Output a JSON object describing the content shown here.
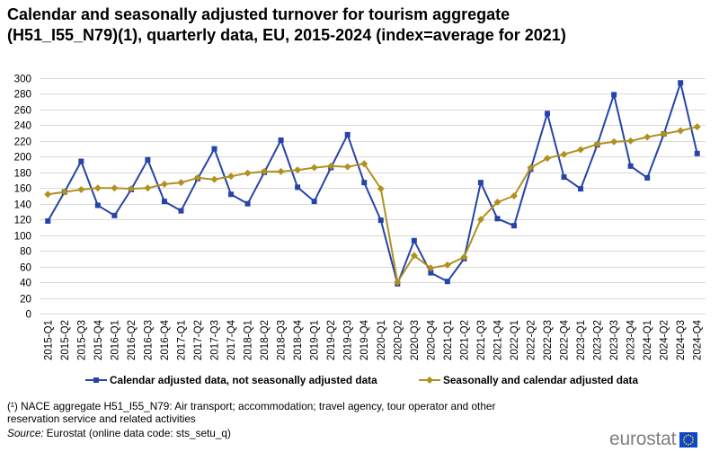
{
  "chart_data": {
    "type": "line",
    "title": [
      "Calendar and seasonally adjusted turnover for tourism aggregate",
      "(H51_I55_N79)(1), quarterly data, EU, 2015-2024 (index=average for 2021)"
    ],
    "x": [
      "2015-Q1",
      "2015-Q2",
      "2015-Q3",
      "2015-Q4",
      "2016-Q1",
      "2016-Q2",
      "2016-Q3",
      "2016-Q4",
      "2017-Q1",
      "2017-Q2",
      "2017-Q3",
      "2017-Q4",
      "2018-Q1",
      "2018-Q2",
      "2018-Q3",
      "2018-Q4",
      "2019-Q1",
      "2019-Q2",
      "2019-Q3",
      "2019-Q4",
      "2020-Q1",
      "2020-Q2",
      "2020-Q3",
      "2020-Q4",
      "2021-Q1",
      "2021-Q2",
      "2021-Q3",
      "2021-Q4",
      "2022-Q1",
      "2022-Q2",
      "2022-Q3",
      "2022-Q4",
      "2023-Q1",
      "2023-Q2",
      "2023-Q3",
      "2023-Q4",
      "2024-Q1",
      "2024-Q2",
      "2024-Q3",
      "2024-Q4"
    ],
    "ylim": [
      0,
      300
    ],
    "yticks": [
      0,
      20,
      40,
      60,
      80,
      100,
      120,
      140,
      160,
      180,
      200,
      220,
      240,
      260,
      280,
      300
    ],
    "grid": true,
    "legend": "bottom",
    "series": [
      {
        "name": "Calendar adjusted data, not seasonally adjusted data",
        "color": "#2644A7",
        "marker": "square",
        "values": [
          118,
          155,
          194,
          138,
          125,
          158,
          196,
          143,
          131,
          172,
          210,
          152,
          140,
          180,
          221,
          161,
          143,
          186,
          228,
          167,
          119,
          38,
          93,
          52,
          41,
          70,
          167,
          121,
          112,
          184,
          255,
          174,
          159,
          215,
          279,
          188,
          173,
          229,
          294,
          204
        ]
      },
      {
        "name": "Seasonally and calendar adjusted data",
        "color": "#B09120",
        "marker": "diamond",
        "values": [
          152,
          155,
          158,
          160,
          160,
          159,
          160,
          165,
          167,
          173,
          171,
          175,
          179,
          181,
          181,
          183,
          186,
          188,
          187,
          191,
          159,
          40,
          74,
          58,
          62,
          72,
          120,
          142,
          150,
          186,
          198,
          203,
          209,
          216,
          219,
          220,
          225,
          229,
          233,
          238
        ]
      }
    ]
  },
  "footnote": [
    "(¹) NACE aggregate H51_I55_N79: Air transport; accommodation; travel agency, tour operator and other",
    "reservation service and related activities"
  ],
  "source": {
    "label": "Source:",
    "text": "Eurostat (online data code: sts_setu_q)"
  },
  "logo": {
    "text": "eurostat",
    "icon": "eu-flag-icon",
    "flag_color": "#0E47CB",
    "star_color": "#FFDD00"
  }
}
